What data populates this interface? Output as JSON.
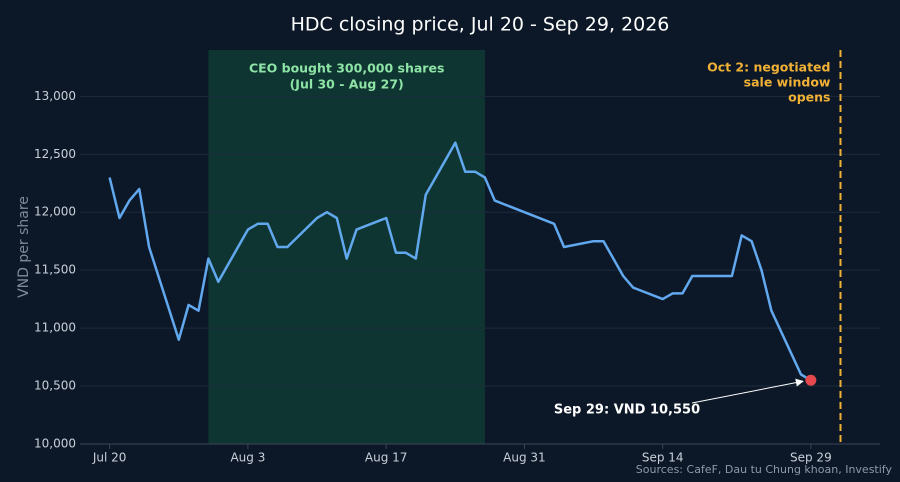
{
  "chart_data": {
    "type": "line",
    "title": "HDC closing price, Jul 20 - Sep 29, 2026",
    "y_label": "VND per share",
    "source": "Sources: CafeF, Dau tu Chung khoan, Investify",
    "color": "#62a8ee",
    "grid": true,
    "x": [
      "Jul 20",
      "Jul 21",
      "Jul 22",
      "Jul 23",
      "Jul 24",
      "Jul 27",
      "Jul 28",
      "Jul 29",
      "Jul 30",
      "Jul 31",
      "Aug 3",
      "Aug 4",
      "Aug 5",
      "Aug 6",
      "Aug 7",
      "Aug 10",
      "Aug 11",
      "Aug 12",
      "Aug 13",
      "Aug 14",
      "Aug 17",
      "Aug 18",
      "Aug 19",
      "Aug 20",
      "Aug 21",
      "Aug 24",
      "Aug 25",
      "Aug 26",
      "Aug 27",
      "Aug 28",
      "Sep 3",
      "Sep 4",
      "Sep 7",
      "Sep 8",
      "Sep 10",
      "Sep 11",
      "Sep 14",
      "Sep 15",
      "Sep 16",
      "Sep 17",
      "Sep 21",
      "Sep 22",
      "Sep 23",
      "Sep 24",
      "Sep 25",
      "Sep 28",
      "Sep 29"
    ],
    "values": [
      12300,
      11950,
      12100,
      12200,
      11700,
      10900,
      11200,
      11150,
      11600,
      11400,
      11850,
      11900,
      11900,
      11700,
      11700,
      11950,
      12000,
      11950,
      11600,
      11850,
      11950,
      11650,
      11650,
      11600,
      12150,
      12600,
      12350,
      12350,
      12300,
      12100,
      11900,
      11700,
      11750,
      11750,
      11450,
      11350,
      11250,
      11300,
      11300,
      11450,
      11450,
      11800,
      11750,
      11500,
      11150,
      10600,
      10550
    ],
    "xlim": [
      "Jul 17",
      "Oct 6"
    ],
    "xticks": [
      "Jul 20",
      "Aug 3",
      "Aug 17",
      "Aug 31",
      "Sep 14",
      "Sep 29"
    ],
    "ylim": [
      10000,
      13400
    ],
    "yticks": [
      {
        "value": 10000,
        "label": "10,000"
      },
      {
        "value": 10500,
        "label": "10,500"
      },
      {
        "value": 11000,
        "label": "11,000"
      },
      {
        "value": 11500,
        "label": "11,500"
      },
      {
        "value": 12000,
        "label": "12,000"
      },
      {
        "value": 12500,
        "label": "12,500"
      },
      {
        "value": 13000,
        "label": "13,000"
      }
    ],
    "shaded_span": {
      "start": "Jul 30",
      "end": "Aug 27",
      "color": "#0f3b33",
      "text_color": "#8ee3a6",
      "label_lines": [
        "CEO bought 300,000 shares",
        "(Jul 30 - Aug 27)"
      ]
    },
    "event_line": {
      "x": "Oct 2",
      "color": "#f0b135",
      "label_lines": [
        "Oct 2: negotiated",
        "sale window",
        "opens"
      ]
    },
    "point_label": {
      "text": "Sep 29: VND 10,550",
      "x": "Sep 29",
      "y": 10550,
      "marker_color": "#e5484d"
    }
  }
}
